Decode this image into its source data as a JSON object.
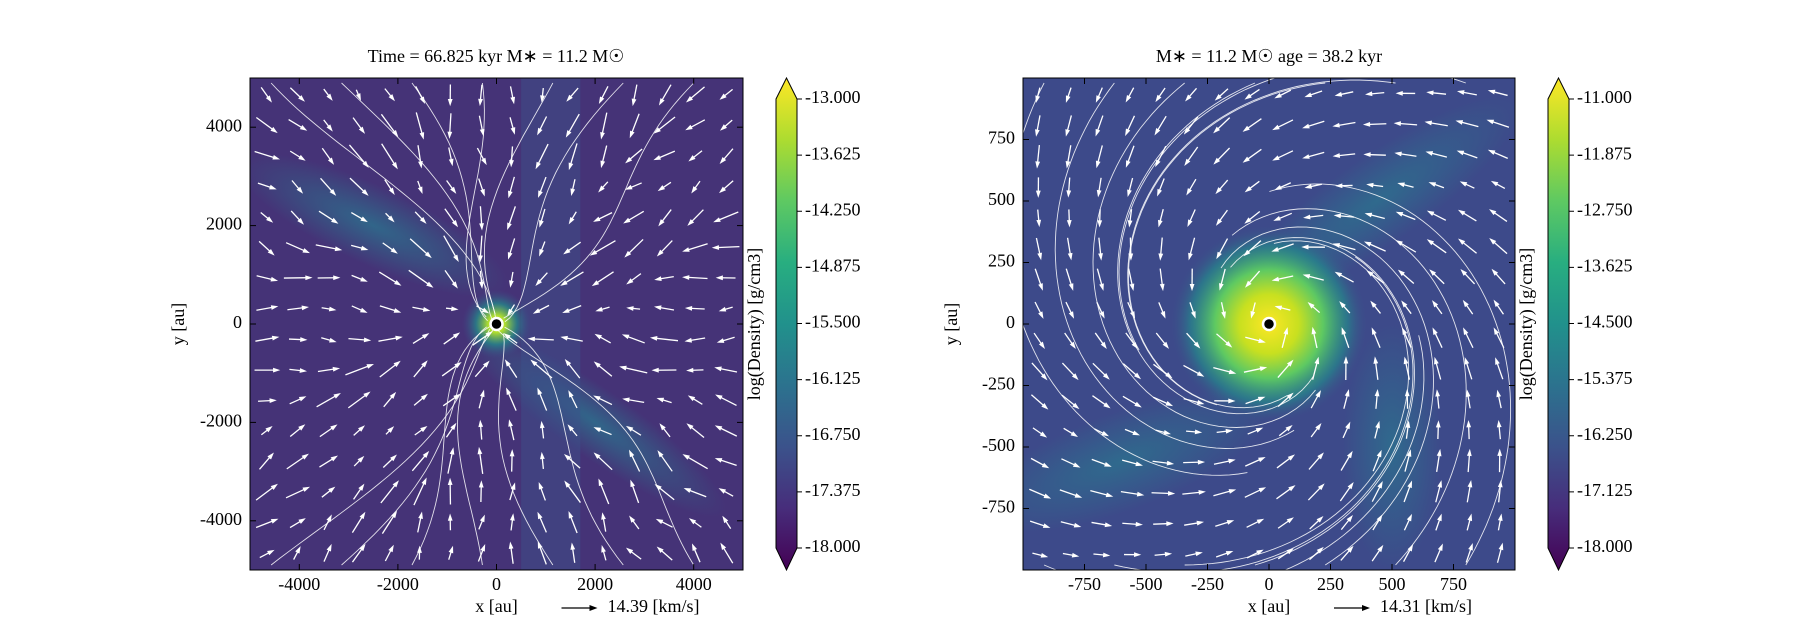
{
  "chart_data": [
    {
      "type": "density-map",
      "title": "Time = 66.825 kyr    M∗ = 11.2 M☉",
      "xlabel": "x [au]",
      "ylabel": "y [au]",
      "xlim": [
        -5000,
        5000
      ],
      "ylim": [
        -5000,
        5000
      ],
      "xticks": [
        -4000,
        -2000,
        0,
        2000,
        4000
      ],
      "yticks": [
        -4000,
        -2000,
        0,
        2000,
        4000
      ],
      "colorbar": {
        "label": "log(Density) [g/cm3]",
        "lim": [
          -18,
          -13
        ],
        "ticks": [
          {
            "value": -13,
            "label": "-13.000"
          },
          {
            "value": -13.625,
            "label": "-13.625"
          },
          {
            "value": -14.25,
            "label": "-14.250"
          },
          {
            "value": -14.875,
            "label": "-14.875"
          },
          {
            "value": -15.5,
            "label": "-15.500"
          },
          {
            "value": -16.125,
            "label": "-16.125"
          },
          {
            "value": -16.75,
            "label": "-16.750"
          },
          {
            "value": -17.375,
            "label": "-17.375"
          },
          {
            "value": -18,
            "label": "-18.000"
          }
        ]
      },
      "velocity_label": "14.39 [km/s]",
      "flow": "infall"
    },
    {
      "type": "density-map",
      "title": "M∗ = 11.2 M☉          age = 38.2 kyr",
      "xlabel": "x [au]",
      "ylabel": "y [au]",
      "xlim": [
        -1000,
        1000
      ],
      "ylim": [
        -1000,
        1000
      ],
      "xticks": [
        -750,
        -500,
        -250,
        0,
        250,
        500,
        750
      ],
      "yticks": [
        -750,
        -500,
        -250,
        0,
        250,
        500,
        750
      ],
      "colorbar": {
        "label": "log(Density) [g/cm3]",
        "lim": [
          -18,
          -11
        ],
        "ticks": [
          {
            "value": -11,
            "label": "-11.000"
          },
          {
            "value": -11.875,
            "label": "-11.875"
          },
          {
            "value": -12.75,
            "label": "-12.750"
          },
          {
            "value": -13.625,
            "label": "-13.625"
          },
          {
            "value": -14.5,
            "label": "-14.500"
          },
          {
            "value": -15.375,
            "label": "-15.375"
          },
          {
            "value": -16.25,
            "label": "-16.250"
          },
          {
            "value": -17.125,
            "label": "-17.125"
          },
          {
            "value": -18,
            "label": "-18.000"
          }
        ]
      },
      "velocity_label": "14.31 [km/s]",
      "flow": "swirl"
    }
  ]
}
